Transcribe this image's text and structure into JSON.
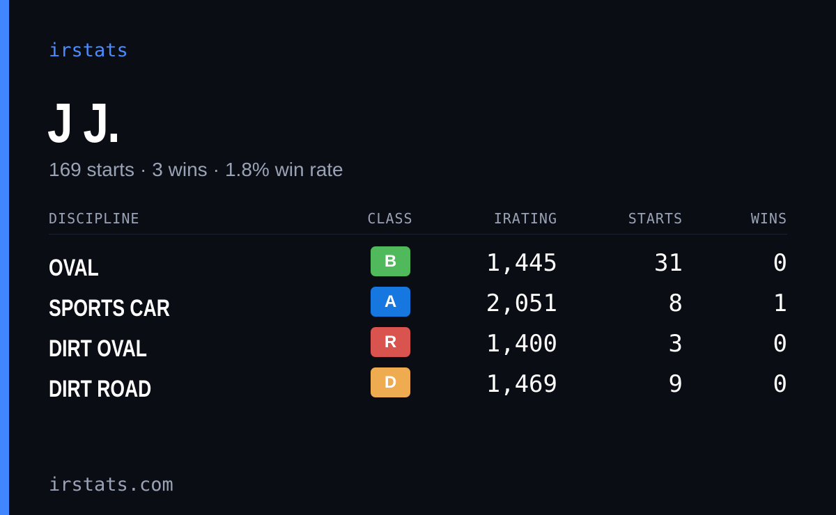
{
  "brand": "irstats",
  "player": {
    "name": "J J."
  },
  "summary": {
    "starts": "169 starts",
    "wins": "3 wins",
    "win_rate": "1.8% win rate",
    "separator": "·"
  },
  "table": {
    "headers": {
      "discipline": "DISCIPLINE",
      "class": "CLASS",
      "irating": "IRATING",
      "starts": "STARTS",
      "wins": "WINS"
    },
    "rows": [
      {
        "discipline": "OVAL",
        "class": "B",
        "class_color": "#4fb95b",
        "irating": "1,445",
        "starts": "31",
        "wins": "0"
      },
      {
        "discipline": "SPORTS CAR",
        "class": "A",
        "class_color": "#1677e0",
        "irating": "2,051",
        "starts": "8",
        "wins": "1"
      },
      {
        "discipline": "DIRT OVAL",
        "class": "R",
        "class_color": "#d9534f",
        "irating": "1,400",
        "starts": "3",
        "wins": "0"
      },
      {
        "discipline": "DIRT ROAD",
        "class": "D",
        "class_color": "#eeab50",
        "irating": "1,469",
        "starts": "9",
        "wins": "0"
      }
    ]
  },
  "footer": "irstats.com",
  "colors": {
    "background": "#0a0d14",
    "accent": "#3f86ff",
    "muted_text": "#9aa3b6"
  }
}
